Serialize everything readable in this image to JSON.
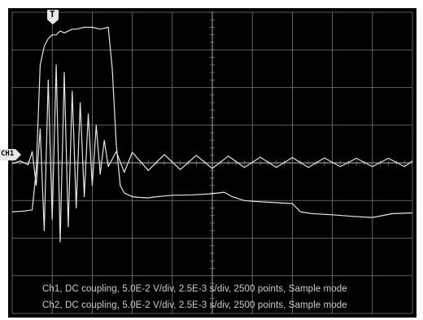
{
  "markers": {
    "trigger_label": "T",
    "ch1_label": "CH1"
  },
  "info": {
    "ch1": "Ch1, DC coupling, 5.0E-2 V/div, 2.5E-3 s/div, 2500 points, Sample mode",
    "ch2": "Ch2, DC coupling, 5.0E-2 V/div, 2.5E-3 s/div, 2500 points, Sample mode"
  },
  "colors": {
    "screen": "#000000",
    "grid": "#7a7a7a",
    "trace": "#e6e6e6"
  },
  "chart_data": {
    "type": "line",
    "x_units": "divisions",
    "y_units": "divisions",
    "xlim": [
      0,
      10
    ],
    "ylim": [
      -4,
      4
    ],
    "grid": true,
    "series": [
      {
        "x": [
          0,
          0.2,
          0.4,
          0.5,
          0.6,
          0.7,
          0.8,
          0.9,
          1.0,
          1.1,
          1.2,
          1.3,
          1.4,
          1.5,
          1.6,
          1.7,
          1.8,
          1.9,
          2.0,
          2.1,
          2.2,
          2.3,
          2.4,
          2.6,
          2.8,
          3.0,
          3.4,
          3.8,
          4.2,
          4.6,
          5.0,
          5.4,
          5.8,
          6.2,
          6.6,
          7.0,
          7.4,
          7.8,
          8.2,
          8.6,
          9.0,
          9.4,
          9.8,
          10
        ],
        "y": [
          -0.02,
          0.05,
          -0.05,
          0.3,
          -0.6,
          0.9,
          -1.8,
          2.2,
          -1.5,
          2.6,
          -2.1,
          2.4,
          -1.7,
          1.9,
          -1.2,
          1.6,
          -0.9,
          1.3,
          -0.6,
          1.0,
          -0.3,
          0.6,
          -0.1,
          0.3,
          -0.25,
          0.28,
          -0.2,
          0.22,
          -0.18,
          0.2,
          -0.15,
          0.18,
          -0.12,
          0.15,
          -0.12,
          0.14,
          -0.12,
          0.13,
          -0.1,
          0.12,
          -0.1,
          0.12,
          -0.1,
          0.05
        ]
      },
      {
        "x": [
          0,
          0.3,
          0.5,
          0.6,
          0.7,
          0.8,
          0.9,
          1.0,
          1.1,
          1.2,
          1.3,
          1.4,
          1.5,
          1.6,
          1.8,
          2.0,
          2.2,
          2.4,
          2.5,
          2.6,
          2.7,
          2.8,
          2.9,
          3.0,
          3.2,
          3.4,
          3.6,
          3.8,
          4.0,
          4.5,
          5.0,
          5.3,
          5.5,
          5.8,
          6.0,
          6.5,
          7.0,
          7.2,
          7.5,
          8.0,
          8.5,
          9.0,
          9.5,
          10
        ],
        "y": [
          -1.3,
          -1.28,
          -1.25,
          -0.2,
          2.6,
          3.1,
          3.3,
          3.4,
          3.4,
          3.5,
          3.45,
          3.5,
          3.55,
          3.55,
          3.6,
          3.6,
          3.55,
          3.6,
          2.5,
          0.5,
          -0.6,
          -0.8,
          -0.85,
          -0.9,
          -0.92,
          -0.93,
          -0.9,
          -0.88,
          -0.86,
          -0.85,
          -0.82,
          -0.78,
          -0.9,
          -1.0,
          -1.02,
          -1.05,
          -1.08,
          -1.3,
          -1.35,
          -1.38,
          -1.42,
          -1.45,
          -1.35,
          -1.33
        ]
      }
    ]
  }
}
